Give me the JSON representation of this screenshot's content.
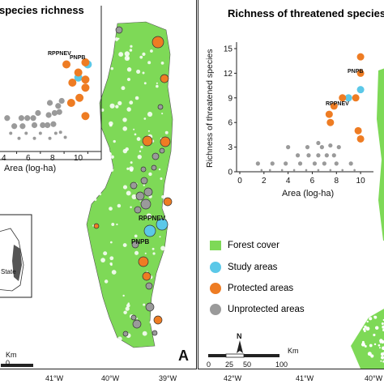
{
  "panelA": {
    "title": "species richness",
    "xAxisLabel": "Area (log-ha)",
    "xTicks": [
      "4",
      "6",
      "8",
      "10"
    ],
    "labels": {
      "pnpb": "PNPB",
      "rppnev": "RPPNEV"
    },
    "mapLabels": {
      "rppnev": "RPPNEV",
      "pnpb": "PNPB"
    },
    "insetState": "State",
    "scaleUnit": "Km",
    "scaleValue": "0",
    "letter": "A",
    "longitudes": [
      "41°W",
      "40°W",
      "39°W"
    ]
  },
  "panelB": {
    "title": "Richness of threatened species",
    "yAxisLabel": "Richness of threatened species",
    "xAxisLabel": "Area (log-ha)",
    "yTicks": [
      "0",
      "3",
      "6",
      "9",
      "12",
      "15"
    ],
    "xTicks": [
      "0",
      "2",
      "4",
      "6",
      "8",
      "10"
    ],
    "labels": {
      "pnpb": "PNPB",
      "rppnev": "RPPNEV"
    },
    "northLabel": "N",
    "scaleLabels": [
      "0",
      "25",
      "50",
      "100"
    ],
    "scaleUnit": "Km",
    "longitudes": [
      "42°W",
      "41°W",
      "40°W"
    ]
  },
  "legend": {
    "items": [
      {
        "label": "Forest cover",
        "color": "#7ed957",
        "shape": "square"
      },
      {
        "label": "Study areas",
        "color": "#5bc8e8",
        "shape": "circle"
      },
      {
        "label": "Protected areas",
        "color": "#ee7c23",
        "shape": "circle"
      },
      {
        "label": "Unprotected areas",
        "color": "#9a9a9a",
        "shape": "circle"
      }
    ]
  },
  "colors": {
    "forest": "#7ed957",
    "study": "#5bc8e8",
    "protected": "#ee7c23",
    "unprotected": "#9a9a9a"
  },
  "chart_data": [
    {
      "type": "scatter",
      "title": "species richness",
      "xlabel": "Area (log-ha)",
      "xlim": [
        2.8,
        11
      ],
      "series": [
        {
          "name": "Study areas",
          "points": [
            [
              10,
              0.78
            ],
            [
              9.2,
              0.65
            ]
          ]
        },
        {
          "name": "Protected areas",
          "points": [
            [
              8.2,
              0.78
            ],
            [
              9.8,
              0.8
            ],
            [
              9.2,
              0.7
            ],
            [
              8.7,
              0.6
            ],
            [
              9.8,
              0.63
            ],
            [
              9.8,
              0.55
            ],
            [
              8.6,
              0.4
            ],
            [
              9.3,
              0.45
            ],
            [
              9.8,
              0.27
            ]
          ]
        },
        {
          "name": "Unprotected areas",
          "points": [
            [
              6.8,
              0.4
            ],
            [
              7.8,
              0.42
            ],
            [
              7.5,
              0.37
            ],
            [
              6.7,
              0.28
            ],
            [
              5.8,
              0.3
            ],
            [
              7.2,
              0.3
            ],
            [
              7.6,
              0.31
            ],
            [
              3.2,
              0.25
            ],
            [
              4.4,
              0.25
            ],
            [
              4.9,
              0.25
            ],
            [
              5.4,
              0.25
            ],
            [
              3.8,
              0.17
            ],
            [
              4.5,
              0.17
            ],
            [
              5.5,
              0.18
            ],
            [
              6.2,
              0.18
            ],
            [
              6.6,
              0.18
            ],
            [
              7.1,
              0.19
            ],
            [
              3.5,
              0.1
            ],
            [
              4.8,
              0.1
            ],
            [
              6.0,
              0.1
            ],
            [
              7.3,
              0.1
            ],
            [
              7.7,
              0.11
            ],
            [
              4.2,
              0.05
            ],
            [
              5.5,
              0.05
            ],
            [
              6.8,
              0.05
            ],
            [
              8.1,
              0.06
            ]
          ]
        }
      ]
    },
    {
      "type": "scatter",
      "title": "Richness of threatened species",
      "xlabel": "Area (log-ha)",
      "ylabel": "Richness of threatened species",
      "xlim": [
        0,
        11
      ],
      "ylim": [
        0,
        15
      ],
      "series": [
        {
          "name": "Study areas",
          "points": [
            [
              10,
              10
            ],
            [
              9.0,
              9
            ]
          ]
        },
        {
          "name": "Protected areas",
          "points": [
            [
              10,
              14
            ],
            [
              10,
              12
            ],
            [
              8.5,
              9
            ],
            [
              9.6,
              9
            ],
            [
              7.8,
              8
            ],
            [
              7.4,
              7
            ],
            [
              7.5,
              6
            ],
            [
              9.8,
              5
            ],
            [
              10,
              4
            ]
          ]
        },
        {
          "name": "Unprotected areas",
          "points": [
            [
              6.5,
              3.5
            ],
            [
              7.5,
              3.2
            ],
            [
              8.2,
              3.0
            ],
            [
              4.0,
              3.0
            ],
            [
              5.6,
              3.0
            ],
            [
              6.8,
              3.0
            ],
            [
              4.8,
              2.0
            ],
            [
              5.7,
              2.0
            ],
            [
              6.5,
              2.0
            ],
            [
              7.2,
              2.0
            ],
            [
              7.8,
              2.0
            ],
            [
              1.5,
              1.0
            ],
            [
              2.7,
              1.0
            ],
            [
              3.8,
              1.0
            ],
            [
              5.0,
              1.0
            ],
            [
              6.2,
              1.0
            ],
            [
              7.0,
              1.0
            ],
            [
              8.0,
              1.0
            ],
            [
              9.2,
              1.0
            ],
            [
              1.8,
              0.2
            ],
            [
              2.5,
              0.2
            ],
            [
              3.5,
              0.2
            ],
            [
              4.5,
              0.2
            ],
            [
              5.5,
              0.2
            ],
            [
              6.5,
              0.2
            ],
            [
              7.5,
              0.2
            ],
            [
              8.5,
              0.2
            ],
            [
              9.5,
              0.2
            ]
          ]
        }
      ]
    }
  ]
}
